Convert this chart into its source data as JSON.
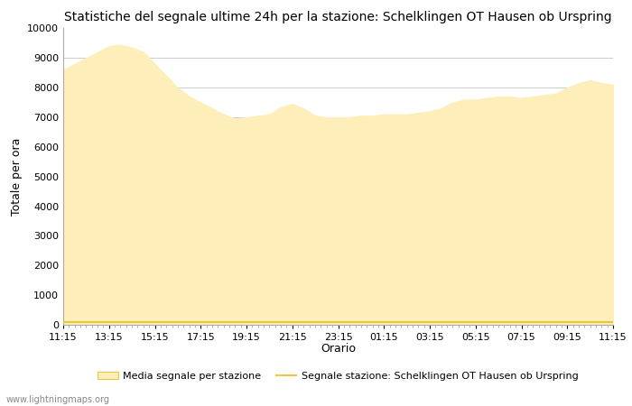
{
  "title": "Statistiche del segnale ultime 24h per la stazione: Schelklingen OT Hausen ob Urspring",
  "xlabel": "Orario",
  "ylabel": "Totale per ora",
  "xlim": [
    0,
    24
  ],
  "ylim": [
    0,
    10000
  ],
  "yticks": [
    0,
    1000,
    2000,
    3000,
    4000,
    5000,
    6000,
    7000,
    8000,
    9000,
    10000
  ],
  "xtick_labels": [
    "11:15",
    "13:15",
    "15:15",
    "17:15",
    "19:15",
    "21:15",
    "23:15",
    "01:15",
    "03:15",
    "05:15",
    "07:15",
    "09:15",
    "11:15"
  ],
  "fill_color": "#FDEEBA",
  "line_color": "#E8C840",
  "fill_edge_color": "#FDEEBA",
  "background_color": "#ffffff",
  "grid_color": "#cccccc",
  "watermark": "www.lightningmaps.org",
  "legend_fill_label": "Media segnale per stazione",
  "legend_line_label": "Segnale stazione: Schelklingen OT Hausen ob Urspring",
  "x_values": [
    0,
    0.5,
    1,
    1.5,
    2,
    2.5,
    3,
    3.5,
    4,
    4.5,
    5,
    5.5,
    6,
    6.5,
    7,
    7.5,
    8,
    8.5,
    9,
    9.5,
    10,
    10.5,
    11,
    11.5,
    12,
    12.5,
    13,
    13.5,
    14,
    14.5,
    15,
    15.5,
    16,
    16.5,
    17,
    17.5,
    18,
    18.5,
    19,
    19.5,
    20,
    20.5,
    21,
    21.5,
    22,
    22.5,
    23,
    23.5,
    24
  ],
  "y_fill": [
    8600,
    8800,
    9000,
    9200,
    9400,
    9450,
    9350,
    9200,
    8800,
    8400,
    8000,
    7700,
    7500,
    7300,
    7100,
    6950,
    7000,
    7050,
    7100,
    7350,
    7450,
    7300,
    7050,
    7000,
    7000,
    7000,
    7050,
    7050,
    7100,
    7100,
    7100,
    7150,
    7200,
    7300,
    7500,
    7600,
    7600,
    7650,
    7700,
    7700,
    7650,
    7700,
    7750,
    7800,
    8000,
    8150,
    8250,
    8150,
    8100
  ],
  "y_line": [
    80,
    80,
    80,
    80,
    80,
    80,
    80,
    80,
    80,
    80,
    80,
    80,
    80,
    80,
    80,
    80,
    80,
    80,
    80,
    80,
    80,
    80,
    80,
    80,
    80,
    80,
    80,
    80,
    80,
    80,
    80,
    80,
    80,
    80,
    80,
    80,
    80,
    80,
    80,
    80,
    80,
    80,
    80,
    80,
    80,
    80,
    80,
    80,
    80
  ],
  "title_fontsize": 10,
  "axis_label_fontsize": 9,
  "tick_fontsize": 8,
  "legend_fontsize": 8
}
